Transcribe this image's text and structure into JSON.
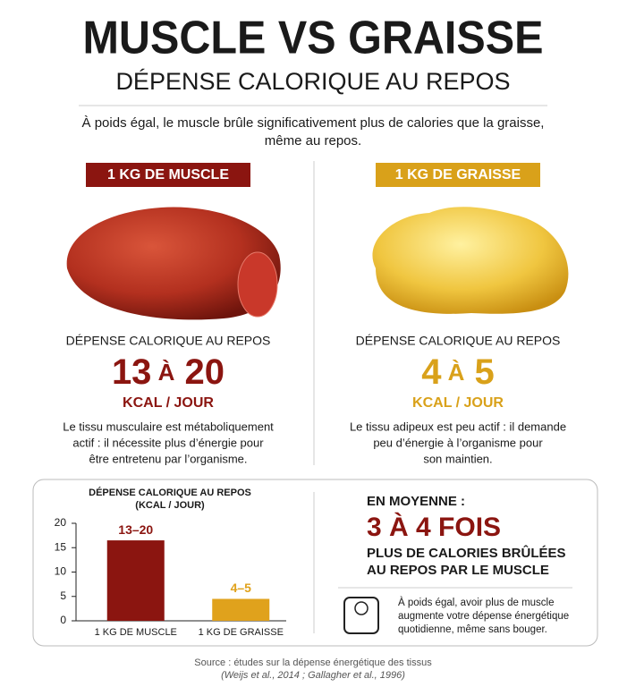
{
  "header": {
    "title": "MUSCLE VS GRAISSE",
    "subtitle": "DÉPENSE CALORIQUE AU REPOS",
    "intro": [
      "À poids égal, le muscle brûle significativement plus de calories que la graisse,",
      "même au repos."
    ]
  },
  "panels": [
    {
      "badge": "1 KG DE MUSCLE",
      "label": "DÉPENSE CALORIQUE AU REPOS",
      "from": "13",
      "sep": "À",
      "to": "20",
      "unit": "KCAL / JOUR",
      "text": [
        "Le tissu musculaire est métaboliquement",
        "actif : il nécessite plus d’énergie pour",
        "être entretenu par l’organisme."
      ]
    },
    {
      "badge": "1 KG DE GRAISSE",
      "label": "DÉPENSE CALORIQUE AU REPOS",
      "from": "4",
      "sep": "À",
      "to": "5",
      "unit": "KCAL / JOUR",
      "text": [
        "Le tissu adipeux est peu actif : il demande",
        "peu d’énergie à l’organisme pour",
        "son maintien."
      ]
    }
  ],
  "chart_data": {
    "type": "bar",
    "title": [
      "DÉPENSE CALORIQUE AU REPOS",
      "(KCAL / JOUR)"
    ],
    "categories": [
      "1 KG DE MUSCLE",
      "1 KG DE GRAISSE"
    ],
    "values": [
      16.5,
      4.5
    ],
    "value_labels": [
      "13–20",
      "4–5"
    ],
    "colors": [
      "#8b1510",
      "#e0a21c"
    ],
    "ylim": [
      0,
      20
    ],
    "yticks": [
      0,
      5,
      10,
      15,
      20
    ]
  },
  "summary": {
    "lead": "EN MOYENNE :",
    "big": "3 À 4 FOIS",
    "lines": [
      "PLUS DE CALORIES BRÛLÉES",
      "AU REPOS PAR LE MUSCLE"
    ],
    "note": [
      "À poids égal, avoir plus de muscle",
      "augmente votre dépense énergétique",
      "quotidienne, même sans bouger."
    ]
  },
  "footer": [
    "Source : études sur la dépense énergétique des tissus",
    "(Weijs et al., 2014 ; Gallagher et al., 1996)"
  ]
}
